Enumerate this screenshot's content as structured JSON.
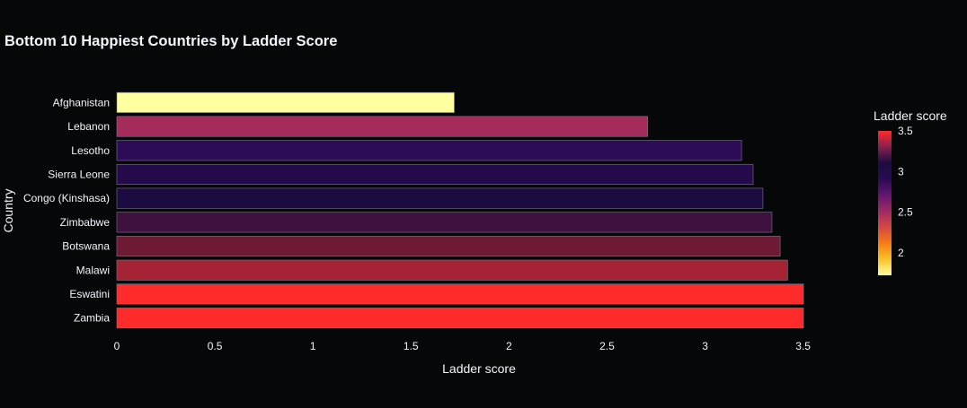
{
  "chart_data": {
    "type": "bar",
    "orientation": "horizontal",
    "title": "Bottom 10 Happiest Countries by Ladder Score",
    "xlabel": "Ladder score",
    "ylabel": "Country",
    "xlim": [
      0,
      3.52
    ],
    "x_ticks": [
      0,
      0.5,
      1,
      1.5,
      2,
      2.5,
      3,
      3.5
    ],
    "x_tick_labels": [
      "0",
      "0.5",
      "1",
      "1.5",
      "2",
      "2.5",
      "3",
      "3.5"
    ],
    "grid": false,
    "categories": [
      "Afghanistan",
      "Lebanon",
      "Lesotho",
      "Sierra Leone",
      "Congo (Kinshasa)",
      "Zimbabwe",
      "Botswana",
      "Malawi",
      "Eswatini",
      "Zambia"
    ],
    "values": [
      1.721,
      2.707,
      3.186,
      3.245,
      3.295,
      3.341,
      3.383,
      3.421,
      3.502,
      3.502
    ],
    "colorbar": {
      "title": "Ladder score",
      "range": [
        1.721,
        3.502
      ],
      "ticks": [
        2,
        2.5,
        3,
        3.5
      ],
      "tick_labels": [
        "2",
        "2.5",
        "3",
        "3.5"
      ],
      "colorscale": [
        [
          0.0,
          "#fcffa4"
        ],
        [
          0.1111,
          "#fac228"
        ],
        [
          0.2222,
          "#f57d15"
        ],
        [
          0.3333,
          "#d44842"
        ],
        [
          0.4444,
          "#9f2a63"
        ],
        [
          0.5556,
          "#65156e"
        ],
        [
          0.6667,
          "#280b53"
        ],
        [
          0.7778,
          "#1b0c41"
        ],
        [
          0.8889,
          "#87204f"
        ],
        [
          1.0,
          "#ff2a2a"
        ]
      ]
    },
    "bar_colors": [
      "#feff9f",
      "#a42b5a",
      "#2d0c57",
      "#240a4a",
      "#1c0b40",
      "#3f113f",
      "#6f1a34",
      "#a52334",
      "#ff2b2b",
      "#ff2b2b"
    ],
    "bar_outline_color": "#7a7a8a"
  }
}
